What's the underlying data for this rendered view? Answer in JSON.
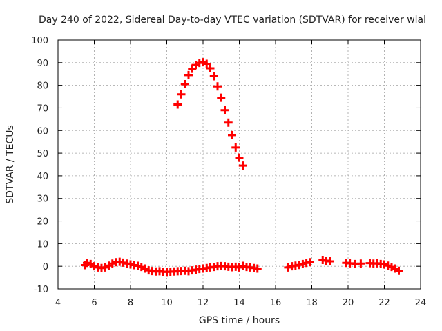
{
  "chart_data": {
    "type": "scatter",
    "title": "Day 240 of 2022, Sidereal Day-to-day VTEC variation (SDTVAR) for receiver wlal",
    "xlabel": "GPS time / hours",
    "ylabel": "SDTVAR / TECUs",
    "xlim": [
      4,
      24
    ],
    "ylim": [
      -10,
      100
    ],
    "xticks": [
      4,
      6,
      8,
      10,
      12,
      14,
      16,
      18,
      20,
      22,
      24
    ],
    "yticks": [
      -10,
      0,
      10,
      20,
      30,
      40,
      50,
      60,
      70,
      80,
      90,
      100
    ],
    "grid": true,
    "marker": "plus",
    "series": [
      {
        "name": "SDTVAR",
        "color": "#ff0000",
        "points": [
          [
            10.6,
            71.5
          ],
          [
            10.8,
            76
          ],
          [
            11.0,
            80.5
          ],
          [
            11.2,
            84.5
          ],
          [
            11.4,
            87.3
          ],
          [
            11.6,
            89
          ],
          [
            11.8,
            89.9
          ],
          [
            12.0,
            90.2
          ],
          [
            12.2,
            89.5
          ],
          [
            12.4,
            87.5
          ],
          [
            12.6,
            84
          ],
          [
            12.8,
            79.5
          ],
          [
            13.0,
            74.5
          ],
          [
            13.2,
            69
          ],
          [
            13.4,
            63.5
          ],
          [
            13.6,
            58
          ],
          [
            13.8,
            52.5
          ],
          [
            14.0,
            48
          ],
          [
            14.2,
            44.5
          ],
          [
            5.5,
            0.5
          ],
          [
            5.6,
            1.5
          ],
          [
            5.8,
            1
          ],
          [
            6.0,
            0
          ],
          [
            6.2,
            -0.5
          ],
          [
            6.4,
            -0.8
          ],
          [
            6.6,
            -0.5
          ],
          [
            6.8,
            0.3
          ],
          [
            7.0,
            1.2
          ],
          [
            7.2,
            1.8
          ],
          [
            7.4,
            2
          ],
          [
            7.6,
            1.6
          ],
          [
            7.8,
            1.2
          ],
          [
            8.0,
            0.8
          ],
          [
            8.2,
            0.5
          ],
          [
            8.4,
            0.2
          ],
          [
            8.6,
            -0.3
          ],
          [
            8.8,
            -1
          ],
          [
            9.0,
            -1.8
          ],
          [
            9.2,
            -2.1
          ],
          [
            9.4,
            -2.3
          ],
          [
            9.6,
            -2.2
          ],
          [
            9.8,
            -2.4
          ],
          [
            10.0,
            -2.5
          ],
          [
            10.2,
            -2.4
          ],
          [
            10.4,
            -2.3
          ],
          [
            10.6,
            -2.2
          ],
          [
            10.8,
            -2.1
          ],
          [
            11.0,
            -2
          ],
          [
            11.2,
            -2.2
          ],
          [
            11.4,
            -1.8
          ],
          [
            11.6,
            -1.5
          ],
          [
            11.8,
            -1.2
          ],
          [
            12.0,
            -1
          ],
          [
            12.2,
            -0.8
          ],
          [
            12.4,
            -0.5
          ],
          [
            12.6,
            -0.3
          ],
          [
            12.8,
            0
          ],
          [
            13.0,
            0.1
          ],
          [
            13.2,
            0
          ],
          [
            13.4,
            -0.2
          ],
          [
            13.6,
            -0.4
          ],
          [
            13.8,
            -0.2
          ],
          [
            14.0,
            -0.5
          ],
          [
            14.2,
            0.2
          ],
          [
            14.4,
            -0.3
          ],
          [
            14.6,
            -0.5
          ],
          [
            14.8,
            -0.8
          ],
          [
            15.0,
            -1
          ],
          [
            16.7,
            -0.5
          ],
          [
            16.9,
            0
          ],
          [
            17.1,
            0.3
          ],
          [
            17.3,
            0.6
          ],
          [
            17.5,
            1
          ],
          [
            17.7,
            1.5
          ],
          [
            17.9,
            1.8
          ],
          [
            18.6,
            2.8
          ],
          [
            18.8,
            2.5
          ],
          [
            19.0,
            2.2
          ],
          [
            19.9,
            1.5
          ],
          [
            20.1,
            1.3
          ],
          [
            20.4,
            1
          ],
          [
            20.7,
            1.2
          ],
          [
            21.2,
            1.4
          ],
          [
            21.4,
            1.2
          ],
          [
            21.6,
            1.3
          ],
          [
            21.8,
            1
          ],
          [
            22.0,
            0.8
          ],
          [
            22.2,
            0.3
          ],
          [
            22.4,
            -0.3
          ],
          [
            22.6,
            -1
          ],
          [
            22.8,
            -2
          ]
        ]
      }
    ]
  }
}
